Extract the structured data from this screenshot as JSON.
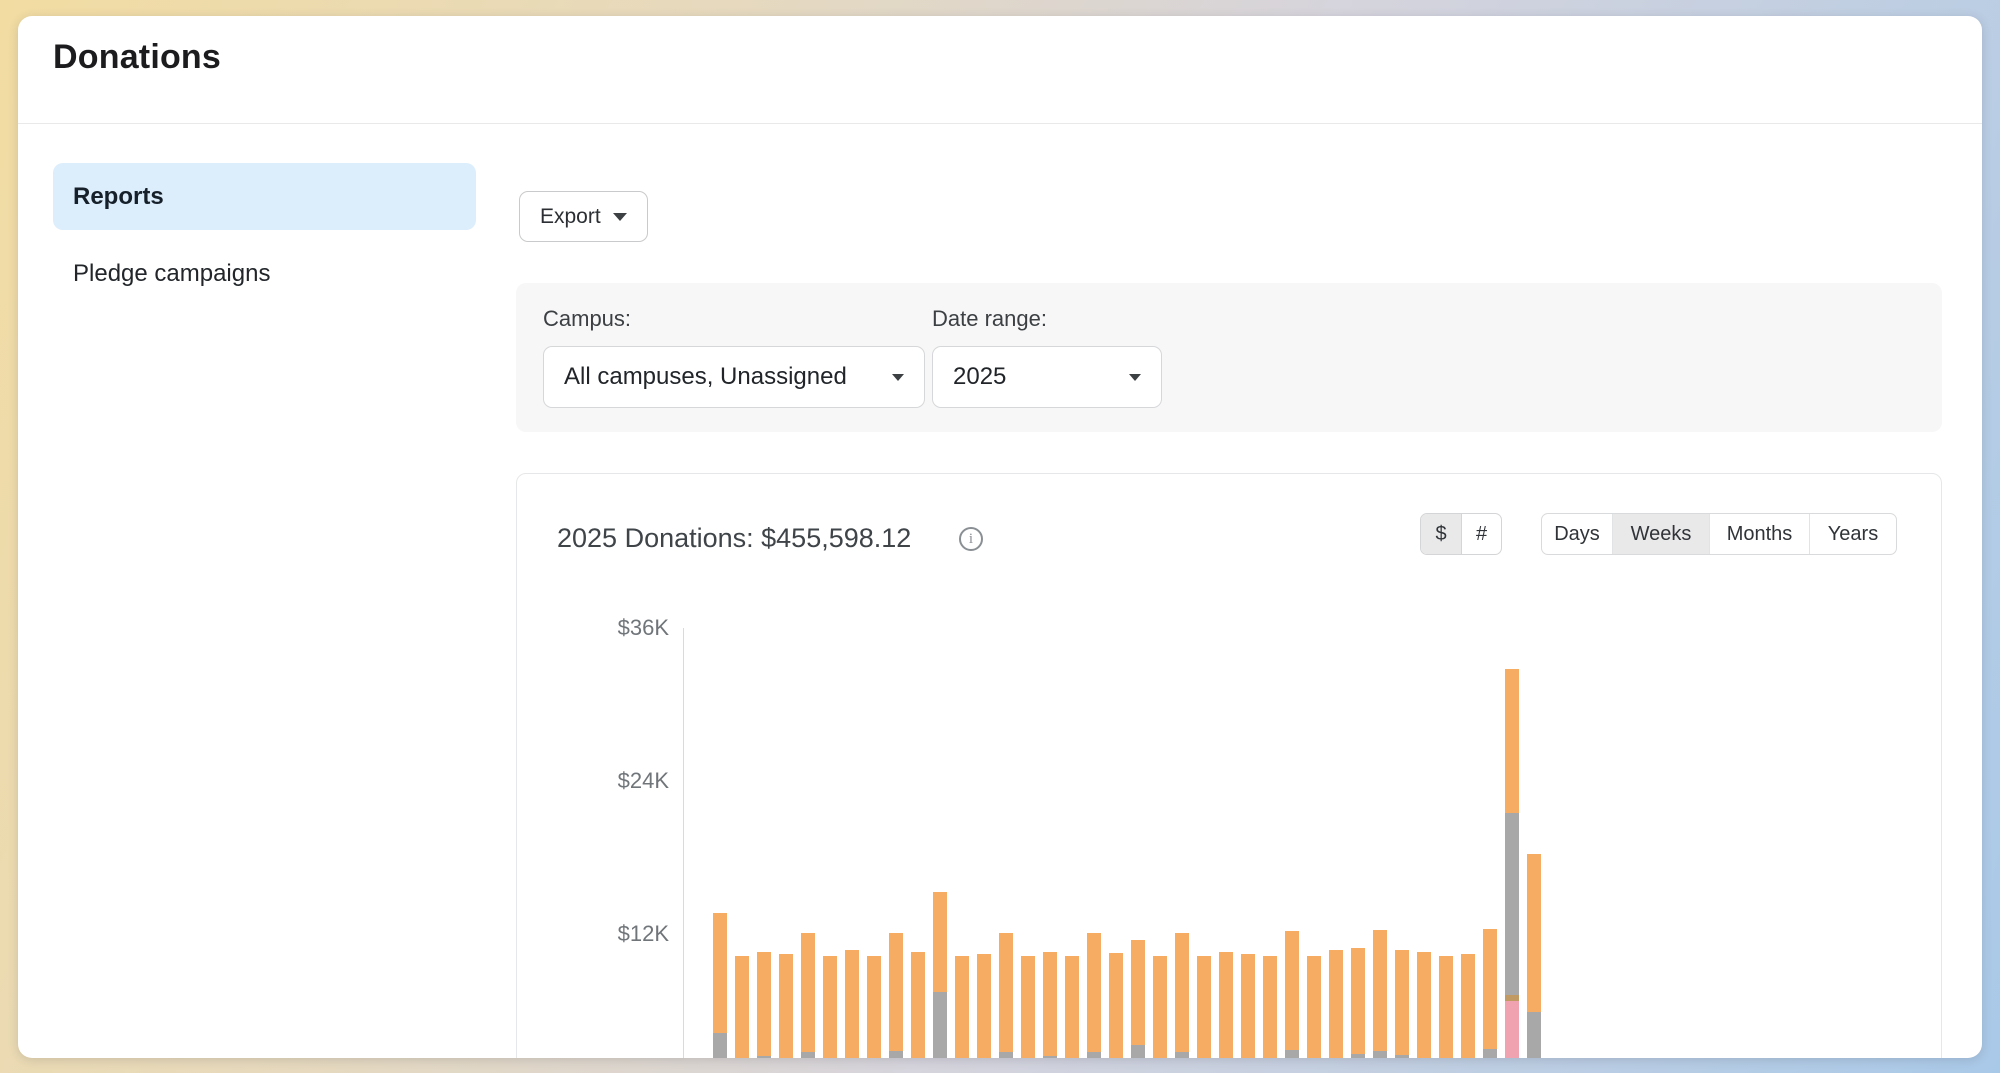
{
  "app": {
    "title": "Donations"
  },
  "sidebar": {
    "items": [
      {
        "label": "Reports",
        "active": true
      },
      {
        "label": "Pledge campaigns",
        "active": false
      }
    ]
  },
  "toolbar": {
    "export_label": "Export"
  },
  "filters": {
    "campus_label": "Campus:",
    "campus_value": "All campuses, Unassigned",
    "date_range_label": "Date range:",
    "date_range_value": "2025"
  },
  "chart_card": {
    "title": "2025 Donations: $455,598.12",
    "info_glyph": "i",
    "unit_toggle": [
      {
        "label": "$",
        "active": true
      },
      {
        "label": "#",
        "active": false
      }
    ],
    "interval_toggle": [
      {
        "label": "Days",
        "active": false
      },
      {
        "label": "Weeks",
        "active": true
      },
      {
        "label": "Months",
        "active": false
      },
      {
        "label": "Years",
        "active": false
      }
    ]
  },
  "chart_data": {
    "type": "bar",
    "stacked": true,
    "title": "2025 Donations: $455,598.12",
    "x_unit": "weeks of 2025",
    "value_unit": "USD thousands",
    "ylim": [
      0,
      36
    ],
    "grid": false,
    "legend": "none",
    "y_ticks": [
      {
        "label": "$36K",
        "value": 36
      },
      {
        "label": "$24K",
        "value": 24
      },
      {
        "label": "$12K",
        "value": 12
      }
    ],
    "colors": {
      "orange": "#f7ac63",
      "gray": "#a8a8a9",
      "pink": "#f1a2b1",
      "tan": "#c09a62"
    },
    "stack_order_bottom_to_top": [
      "pink",
      "tan",
      "gray",
      "orange"
    ],
    "bars": [
      {
        "gray": 3.9,
        "orange": 9.4
      },
      {
        "gray": 1.9,
        "orange": 8.1
      },
      {
        "gray": 2.1,
        "orange": 8.2
      },
      {
        "gray": 1.9,
        "orange": 8.2
      },
      {
        "gray": 2.4,
        "orange": 9.4
      },
      {
        "gray": 1.9,
        "orange": 8.1
      },
      {
        "gray": 2.0,
        "orange": 8.4
      },
      {
        "gray": 1.9,
        "orange": 8.1
      },
      {
        "gray": 2.5,
        "orange": 9.3
      },
      {
        "gray": 2.0,
        "orange": 8.3
      },
      {
        "gray": 7.1,
        "orange": 7.9
      },
      {
        "gray": 1.9,
        "orange": 8.1
      },
      {
        "gray": 2.0,
        "orange": 8.1
      },
      {
        "gray": 2.4,
        "orange": 9.4
      },
      {
        "gray": 1.9,
        "orange": 8.1
      },
      {
        "gray": 2.1,
        "orange": 8.2
      },
      {
        "gray": 1.9,
        "orange": 8.1
      },
      {
        "gray": 2.4,
        "orange": 9.4
      },
      {
        "gray": 1.9,
        "orange": 8.3
      },
      {
        "gray": 3.0,
        "orange": 8.2
      },
      {
        "gray": 1.9,
        "orange": 8.1
      },
      {
        "gray": 2.4,
        "orange": 9.4
      },
      {
        "gray": 1.9,
        "orange": 8.1
      },
      {
        "gray": 2.0,
        "orange": 8.3
      },
      {
        "gray": 1.9,
        "orange": 8.2
      },
      {
        "gray": 1.9,
        "orange": 8.1
      },
      {
        "gray": 2.6,
        "orange": 9.3
      },
      {
        "gray": 1.9,
        "orange": 8.1
      },
      {
        "gray": 2.0,
        "orange": 8.4
      },
      {
        "gray": 2.3,
        "orange": 8.3
      },
      {
        "gray": 2.5,
        "orange": 9.5
      },
      {
        "gray": 2.2,
        "orange": 8.2
      },
      {
        "gray": 2.0,
        "orange": 8.3
      },
      {
        "gray": 1.9,
        "orange": 8.1
      },
      {
        "gray": 1.9,
        "orange": 8.2
      },
      {
        "gray": 2.7,
        "orange": 9.4
      },
      {
        "pink": 6.4,
        "tan": 0.5,
        "gray": 14.3,
        "orange": 11.3
      },
      {
        "gray": 5.6,
        "orange": 12.4
      }
    ]
  }
}
